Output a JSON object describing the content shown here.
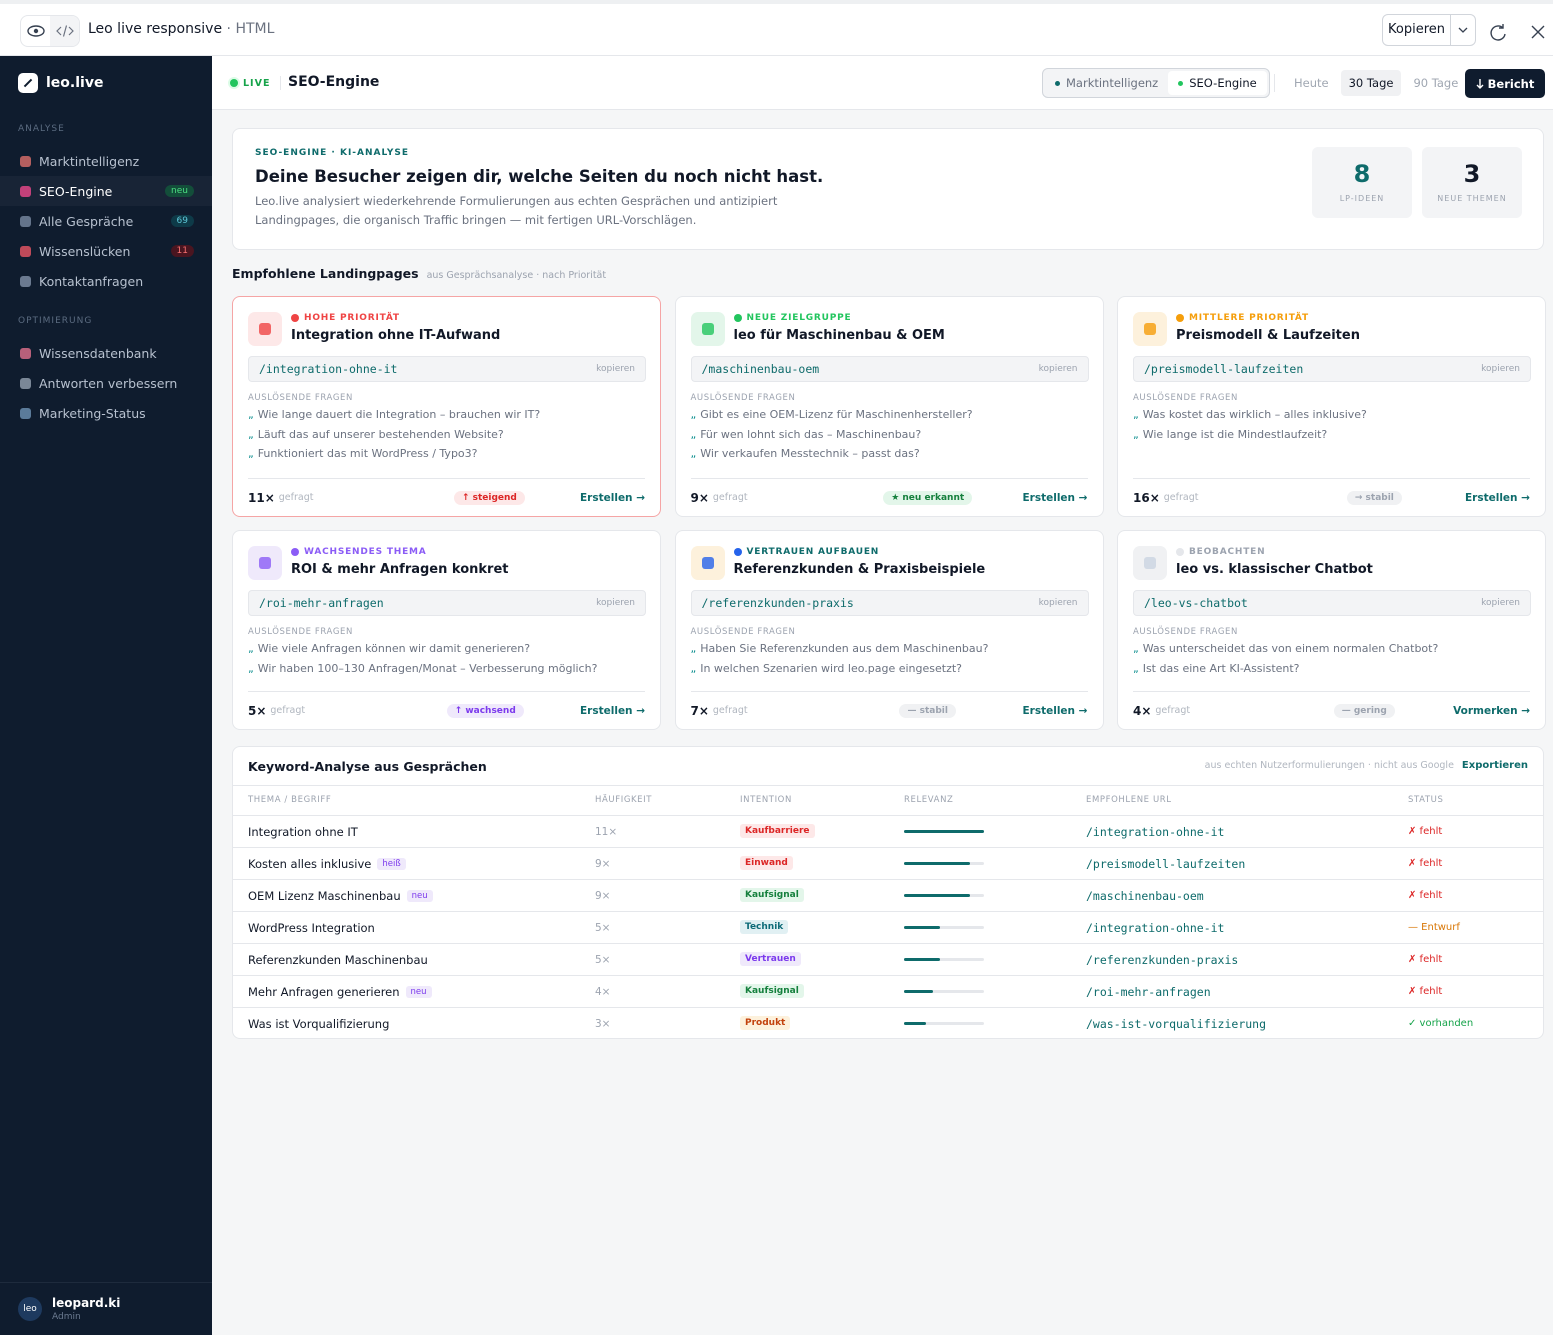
{
  "window": {
    "title": "Leo live responsive",
    "separator": "·",
    "format": "HTML",
    "copy": "Kopieren"
  },
  "sidebar": {
    "logo": "leo.live",
    "active": [
      0,
      1
    ],
    "sections": [
      {
        "label": "ANALYSE",
        "items": [
          {
            "label": "Marktintelligenz",
            "icon": "#b45f5f"
          },
          {
            "label": "SEO-Engine",
            "icon": "#c2417a",
            "badge": "neu",
            "badge_tone": "green"
          },
          {
            "label": "Alle Gespräche",
            "icon": "#64748b",
            "badge": "69",
            "badge_tone": "teal"
          },
          {
            "label": "Wissenslücken",
            "icon": "#be4a5a",
            "badge": "11",
            "badge_tone": "red"
          },
          {
            "label": "Kontaktanfragen",
            "icon": "#6b7a90"
          }
        ]
      },
      {
        "label": "OPTIMIERUNG",
        "items": [
          {
            "label": "Wissensdatenbank",
            "icon": "#b8607a"
          },
          {
            "label": "Antworten verbessern",
            "icon": "#7a8797"
          },
          {
            "label": "Marketing-Status",
            "icon": "#5b7b9a"
          }
        ]
      }
    ],
    "user": {
      "avatar": "leo",
      "name": "leopard.ki",
      "role": "Admin"
    }
  },
  "header": {
    "live": "LIVE",
    "title": "SEO-Engine",
    "tabs": [
      "Marktintelligenz",
      "SEO-Engine"
    ],
    "active_tab": 1,
    "periods": [
      "Heute",
      "30 Tage",
      "90 Tage"
    ],
    "active_period": 1,
    "report": "Bericht"
  },
  "hero": {
    "eyebrow": "SEO-ENGINE · KI-ANALYSE",
    "title": "Deine Besucher zeigen dir, welche Seiten du noch nicht hast.",
    "text": [
      "Leo.live analysiert wiederkehrende Formulierungen aus echten Gesprächen und antizipiert",
      "Landingpages, die organisch Traffic bringen — mit fertigen URL-Vorschlägen."
    ],
    "stats": [
      {
        "value": "8",
        "label": "LP-IDEEN",
        "color": "#0e6b6b"
      },
      {
        "value": "3",
        "label": "NEUE THEMEN",
        "color": "#111827"
      }
    ]
  },
  "landing": {
    "title": "Empfohlene Landingpages",
    "subtitle": "aus Gesprächsanalyse · nach Priorität",
    "copy": "kopieren",
    "questions_label": "AUSLÖSENDE FRAGEN",
    "asked": "gefragt",
    "quote": "„",
    "cards": [
      {
        "priority": "HOHE PRIORITÄT",
        "color": "#ef4444",
        "icon_bg": "#fde8e8",
        "highlight": true,
        "title": "Integration ohne IT-Aufwand",
        "url": "/integration-ohne-it",
        "questions": [
          "Wie lange dauert die Integration – brauchen wir IT?",
          "Läuft das auf unserer bestehenden Website?",
          "Funktioniert das mit WordPress / Typo3?"
        ],
        "count": "11×",
        "trend": "↑ steigend",
        "tone": "red",
        "action": "Erstellen →"
      },
      {
        "priority": "NEUE ZIELGRUPPE",
        "color": "#22c55e",
        "icon_bg": "#e3f6ea",
        "highlight": false,
        "title": "leo für Maschinenbau & OEM",
        "url": "/maschinenbau-oem",
        "questions": [
          "Gibt es eine OEM-Lizenz für Maschinenhersteller?",
          "Für wen lohnt sich das – Maschinenbau?",
          "Wir verkaufen Messtechnik – passt das?"
        ],
        "count": "9×",
        "trend": "★ neu erkannt",
        "tone": "green",
        "action": "Erstellen →"
      },
      {
        "priority": "MITTLERE PRIORITÄT",
        "color": "#f59e0b",
        "icon_bg": "#fdf1dc",
        "highlight": false,
        "title": "Preismodell & Laufzeiten",
        "url": "/preismodell-laufzeiten",
        "questions": [
          "Was kostet das wirklich – alles inklusive?",
          "Wie lange ist die Mindestlaufzeit?"
        ],
        "count": "16×",
        "trend": "→ stabil",
        "tone": "gray",
        "action": "Erstellen →"
      },
      {
        "priority": "WACHSENDES THEMA",
        "color": "#8b5cf6",
        "icon_bg": "#efe9fb",
        "highlight": false,
        "title": "ROI & mehr Anfragen konkret",
        "url": "/roi-mehr-anfragen",
        "questions": [
          "Wie viele Anfragen können wir damit generieren?",
          "Wir haben 100–130 Anfragen/Monat – Verbesserung möglich?"
        ],
        "count": "5×",
        "trend": "↑ wachsend",
        "tone": "purple",
        "action": "Erstellen →"
      },
      {
        "priority": "VERTRAUEN AUFBAUEN",
        "color": "#2563eb",
        "icon_bg": "#fdf1dc",
        "highlight": false,
        "title": "Referenzkunden & Praxisbeispiele",
        "url": "/referenzkunden-praxis",
        "questions": [
          "Haben Sie Referenzkunden aus dem Maschinenbau?",
          "In welchen Szenarien wird leo.page eingesetzt?"
        ],
        "count": "7×",
        "trend": "— stabil",
        "tone": "gray",
        "action": "Erstellen →"
      },
      {
        "priority": "BEOBACHTEN",
        "color": "#e5e7eb",
        "icon_bg": "#f0f1f3",
        "highlight": false,
        "title": "leo vs. klassischer Chatbot",
        "url": "/leo-vs-chatbot",
        "questions": [
          "Was unterscheidet das von einem normalen Chatbot?",
          "Ist das eine Art KI-Assistent?"
        ],
        "count": "4×",
        "trend": "— gering",
        "tone": "gray",
        "action": "Vormerken →"
      }
    ]
  },
  "keywords": {
    "title": "Keyword-Analyse aus Gesprächen",
    "note": "aus echten Nutzerformulierungen · nicht aus Google",
    "export": "Exportieren",
    "columns": [
      "THEMA / BEGRIFF",
      "HÄUFIGKEIT",
      "INTENTION",
      "RELEVANZ",
      "EMPFOHLENE URL",
      "STATUS"
    ],
    "relevance_max": 100,
    "rows": [
      {
        "term": "Integration ohne IT",
        "freq": "11×",
        "intent": "Kaufbarriere",
        "intent_tone": "red",
        "relevance": 100,
        "url": "/integration-ohne-it",
        "status": "✗ fehlt",
        "status_tone": "red"
      },
      {
        "term": "Kosten alles inklusive",
        "tag": "heiß",
        "freq": "9×",
        "intent": "Einwand",
        "intent_tone": "red",
        "relevance": 82,
        "url": "/preismodell-laufzeiten",
        "status": "✗ fehlt",
        "status_tone": "red"
      },
      {
        "term": "OEM Lizenz Maschinenbau",
        "tag": "neu",
        "freq": "9×",
        "intent": "Kaufsignal",
        "intent_tone": "green",
        "relevance": 82,
        "url": "/maschinenbau-oem",
        "status": "✗ fehlt",
        "status_tone": "red"
      },
      {
        "term": "WordPress Integration",
        "freq": "5×",
        "intent": "Technik",
        "intent_tone": "teal",
        "relevance": 45,
        "url": "/integration-ohne-it",
        "status": "— Entwurf",
        "status_tone": "orange"
      },
      {
        "term": "Referenzkunden Maschinenbau",
        "freq": "5×",
        "intent": "Vertrauen",
        "intent_tone": "purple",
        "relevance": 45,
        "url": "/referenzkunden-praxis",
        "status": "✗ fehlt",
        "status_tone": "red"
      },
      {
        "term": "Mehr Anfragen generieren",
        "tag": "neu",
        "freq": "4×",
        "intent": "Kaufsignal",
        "intent_tone": "green",
        "relevance": 36,
        "url": "/roi-mehr-anfragen",
        "status": "✗ fehlt",
        "status_tone": "red"
      },
      {
        "term": "Was ist Vorqualifizierung",
        "freq": "3×",
        "intent": "Produkt",
        "intent_tone": "orange",
        "relevance": 28,
        "url": "/was-ist-vorqualifizierung",
        "status": "✓ vorhanden",
        "status_tone": "green"
      }
    ]
  }
}
